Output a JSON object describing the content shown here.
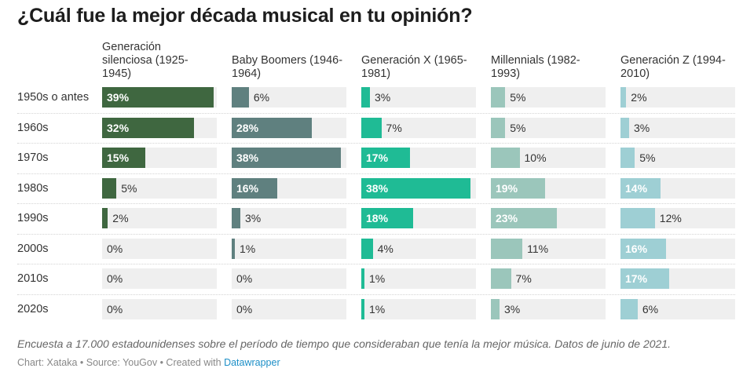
{
  "title": "¿Cuál fue la mejor década musical en tu opinión?",
  "note": "Encuesta a 17.000 estadounidenses sobre el período de tiempo que consideraban que tenía la mejor música. Datos de junio de 2021.",
  "source": {
    "prefix": "Chart: Xataka • Source: YouGov • Created with ",
    "link_text": "Datawrapper"
  },
  "colors": {
    "Generación silenciosa (1925-1945)": "#3f6740",
    "Baby Boomers (1946-1964)": "#5f807f",
    "Generación X (1965-1981)": "#1fbb95",
    "Millennials (1982-1993)": "#9bc6bb",
    "Generación Z (1994-2010)": "#9ecfd4"
  },
  "chart_data": {
    "type": "bar",
    "unit": "%",
    "xlim": [
      0,
      40
    ],
    "categories": [
      "1950s o antes",
      "1960s",
      "1970s",
      "1980s",
      "1990s",
      "2000s",
      "2010s",
      "2020s"
    ],
    "series": [
      {
        "name": "Generación silenciosa (1925-1945)",
        "values": [
          39,
          32,
          15,
          5,
          2,
          0,
          0,
          0
        ]
      },
      {
        "name": "Baby Boomers (1946-1964)",
        "values": [
          6,
          28,
          38,
          16,
          3,
          1,
          0,
          0
        ]
      },
      {
        "name": "Generación X (1965-1981)",
        "values": [
          3,
          7,
          17,
          38,
          18,
          4,
          1,
          1
        ]
      },
      {
        "name": "Millennials (1982-1993)",
        "values": [
          5,
          5,
          10,
          19,
          23,
          11,
          7,
          3
        ]
      },
      {
        "name": "Generación Z (1994-2010)",
        "values": [
          2,
          3,
          5,
          14,
          12,
          16,
          17,
          6
        ]
      }
    ]
  }
}
